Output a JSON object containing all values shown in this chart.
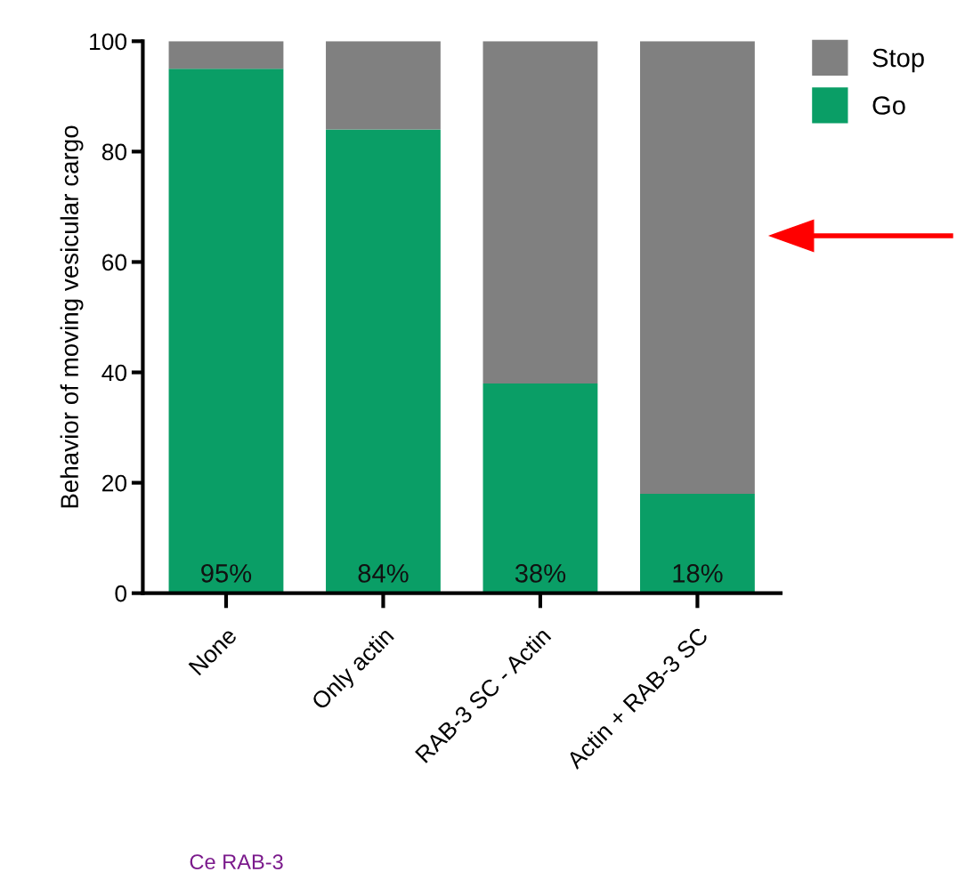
{
  "chart_data": {
    "type": "bar",
    "stacked": true,
    "ylabel": "Behavior of moving vesicular cargo",
    "categories": [
      "None",
      "Only actin",
      "RAB-3 SC - Actin",
      "Actin + RAB-3 SC"
    ],
    "series": [
      {
        "name": "Go",
        "color": "#0a9e66",
        "values": [
          95,
          84,
          38,
          18
        ],
        "value_labels": [
          "95%",
          "84%",
          "38%",
          "18%"
        ]
      },
      {
        "name": "Stop",
        "color": "#808080",
        "values": [
          5,
          16,
          62,
          82
        ]
      }
    ],
    "ylim": [
      0,
      100
    ],
    "yticks": [
      0,
      20,
      40,
      60,
      80,
      100
    ],
    "grid": false,
    "legend": "top right",
    "annotations": [
      "Ce RAB-3"
    ]
  }
}
